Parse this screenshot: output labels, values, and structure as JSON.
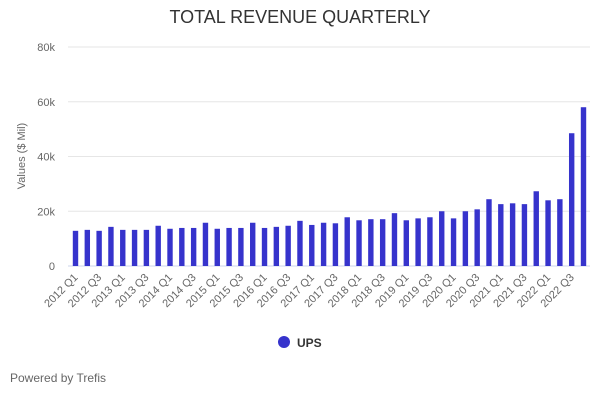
{
  "chart_data": {
    "type": "bar",
    "title": "TOTAL REVENUE QUARTERLY",
    "ylabel": "Values ($ Mil)",
    "xlabel": "",
    "ylim": [
      0,
      80000
    ],
    "yticks": [
      0,
      20000,
      40000,
      60000,
      80000
    ],
    "ytick_labels": [
      "0",
      "20k",
      "40k",
      "60k",
      "80k"
    ],
    "grid": true,
    "legend": "bottom",
    "color": "#3633cc",
    "categories": [
      "2012 Q1",
      "2012 Q2",
      "2012 Q3",
      "2012 Q4",
      "2013 Q1",
      "2013 Q2",
      "2013 Q3",
      "2013 Q4",
      "2014 Q1",
      "2014 Q2",
      "2014 Q3",
      "2014 Q4",
      "2015 Q1",
      "2015 Q2",
      "2015 Q3",
      "2015 Q4",
      "2016 Q1",
      "2016 Q2",
      "2016 Q3",
      "2016 Q4",
      "2017 Q1",
      "2017 Q2",
      "2017 Q3",
      "2017 Q4",
      "2018 Q1",
      "2018 Q2",
      "2018 Q3",
      "2018 Q4",
      "2019 Q1",
      "2019 Q2",
      "2019 Q3",
      "2019 Q4",
      "2020 Q1",
      "2020 Q2",
      "2020 Q3",
      "2020 Q4",
      "2021 Q1",
      "2021 Q2",
      "2021 Q3",
      "2021 Q4",
      "2022 Q1",
      "2022 Q2",
      "2022 Q3",
      "2022 Q4"
    ],
    "series": [
      {
        "name": "UPS",
        "values": [
          12850,
          13200,
          12850,
          14300,
          13200,
          13200,
          13200,
          14700,
          13600,
          13900,
          13900,
          15800,
          13600,
          13900,
          13900,
          15800,
          13900,
          14300,
          14700,
          16500,
          15000,
          15800,
          15600,
          17800,
          16700,
          17100,
          17100,
          19300,
          16700,
          17400,
          17800,
          20000,
          17400,
          20000,
          20700,
          24400,
          22600,
          22900,
          22600,
          27300,
          24000,
          24400,
          48500,
          58000
        ]
      }
    ]
  },
  "footer": {
    "credit": "Powered by Trefis"
  }
}
